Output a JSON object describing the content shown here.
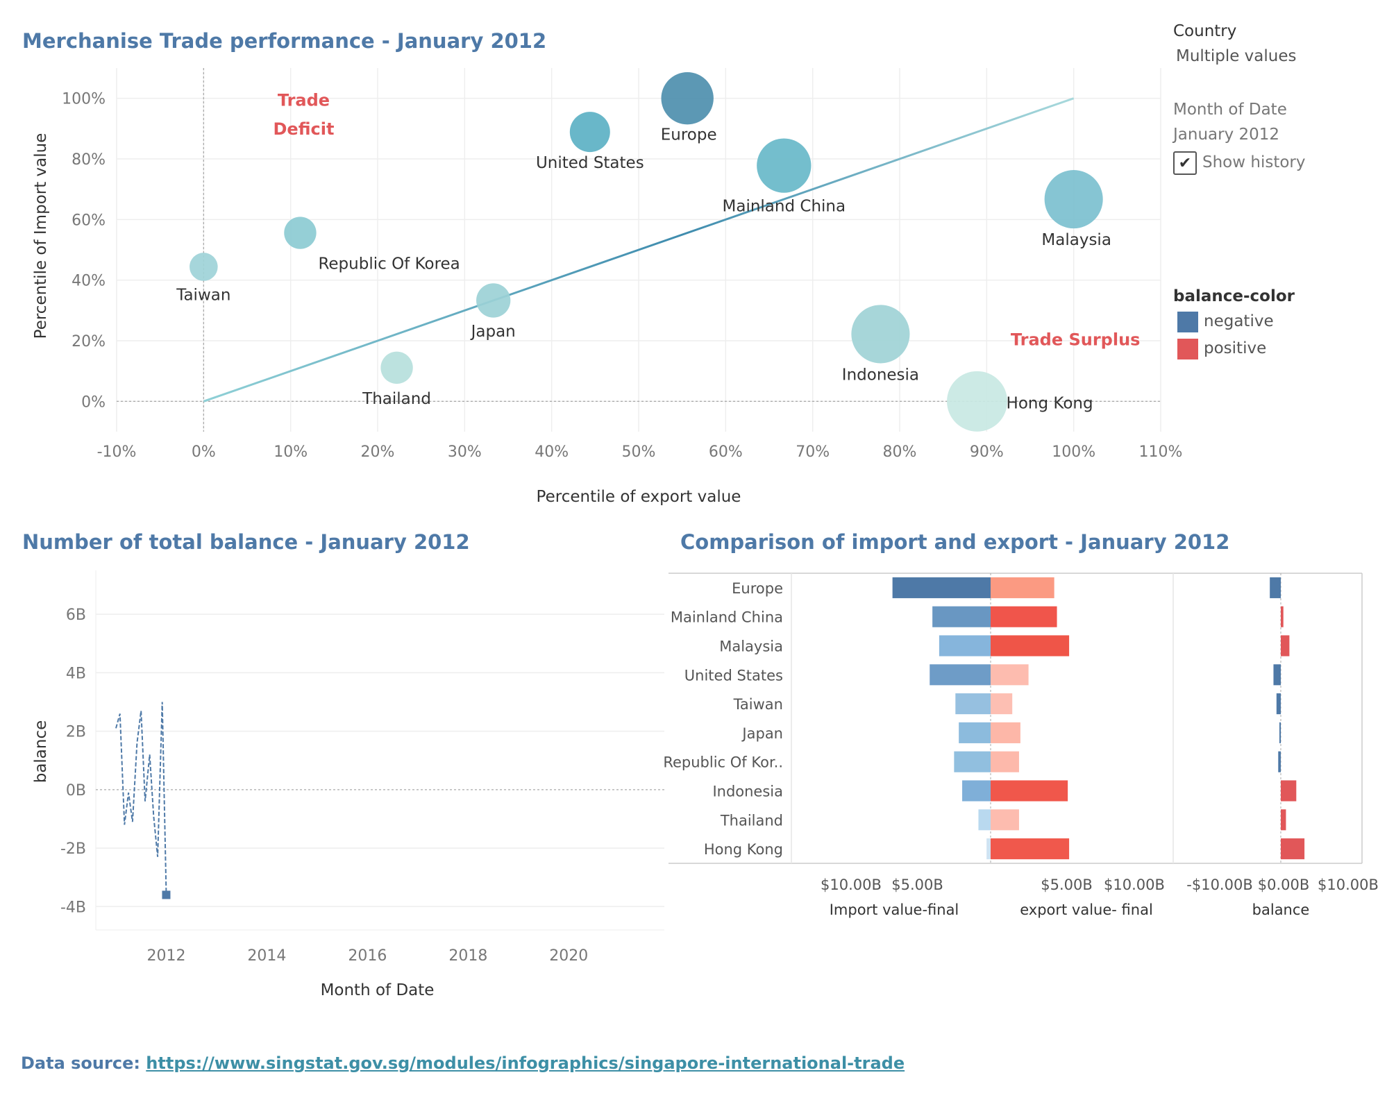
{
  "scatter": {
    "title": "Merchanise Trade performance - January 2012",
    "xlabel": "Percentile of export value",
    "ylabel": "Percentile of Import value",
    "deficit_label_1": "Trade",
    "deficit_label_2": "Deficit",
    "surplus_label": "Trade Surplus"
  },
  "line": {
    "title": "Number of total balance - January 2012",
    "xlabel": "Month of Date",
    "ylabel": "balance"
  },
  "bars": {
    "title": "Comparison of import and export - January 2012",
    "import_label": "Import value-final",
    "export_label": "export value- final",
    "balance_label": "balance"
  },
  "filters": {
    "country_header": "Country",
    "country_value": "Multiple values",
    "month_header": "Month of Date",
    "month_value": "January 2012",
    "show_history_label": "Show history",
    "show_history_checked": true
  },
  "legend": {
    "header": "balance-color",
    "items": [
      {
        "label": "negative",
        "color": "#4e79a7"
      },
      {
        "label": "positive",
        "color": "#e15759"
      }
    ]
  },
  "source": {
    "prefix": "Data source: ",
    "link": "https://www.singstat.gov.sg/modules/infographics/singapore-international-trade"
  },
  "chart_data": [
    {
      "type": "scatter",
      "title": "Merchanise Trade performance - January 2012",
      "xlabel": "Percentile of export value",
      "ylabel": "Percentile of Import value",
      "xlim": [
        -10,
        110
      ],
      "ylim": [
        -10,
        110
      ],
      "x_ticks": [
        "-10%",
        "0%",
        "10%",
        "20%",
        "30%",
        "40%",
        "50%",
        "60%",
        "70%",
        "80%",
        "90%",
        "100%",
        "110%"
      ],
      "y_ticks": [
        "0%",
        "20%",
        "40%",
        "60%",
        "80%",
        "100%"
      ],
      "grid": true,
      "reference_line": {
        "from": [
          0,
          0
        ],
        "to": [
          100,
          100
        ]
      },
      "points": [
        {
          "label": "Taiwan",
          "x": 0,
          "y": 44.4,
          "size": 1.4,
          "color": "#9ed2d8"
        },
        {
          "label": "Republic Of Korea",
          "x": 11.1,
          "y": 55.6,
          "size": 1.6,
          "color": "#8ccbd3"
        },
        {
          "label": "Thailand",
          "x": 22.2,
          "y": 11.1,
          "size": 1.6,
          "color": "#b6e0dc"
        },
        {
          "label": "Japan",
          "x": 33.3,
          "y": 33.3,
          "size": 1.7,
          "color": "#9cd1d6"
        },
        {
          "label": "United States",
          "x": 44.4,
          "y": 88.9,
          "size": 2.0,
          "color": "#5cb1c4"
        },
        {
          "label": "Europe",
          "x": 55.6,
          "y": 100,
          "size": 2.6,
          "color": "#4e8fae"
        },
        {
          "label": "Mainland China",
          "x": 66.7,
          "y": 77.8,
          "size": 2.7,
          "color": "#68b8c9"
        },
        {
          "label": "Malaysia",
          "x": 100,
          "y": 66.7,
          "size": 2.9,
          "color": "#7cc0cf"
        },
        {
          "label": "Indonesia",
          "x": 77.8,
          "y": 22.2,
          "size": 2.9,
          "color": "#a0d3d6"
        },
        {
          "label": "Hong Kong",
          "x": 88.9,
          "y": 0,
          "size": 3.0,
          "color": "#c8e8e3"
        }
      ]
    },
    {
      "type": "line",
      "title": "Number of total balance - January 2012",
      "xlabel": "Month of Date",
      "ylabel": "balance",
      "xlim": [
        2010.6,
        2021.9
      ],
      "ylim": [
        -4.8,
        7.5
      ],
      "x_ticks": [
        "2012",
        "2014",
        "2016",
        "2018",
        "2020"
      ],
      "y_ticks": [
        "-4B",
        "-2B",
        "0B",
        "2B",
        "4B",
        "6B"
      ],
      "grid": true,
      "series": [
        {
          "x": [
            2011.0,
            2011.08,
            2011.17,
            2011.25,
            2011.33,
            2011.42,
            2011.5,
            2011.58,
            2011.67,
            2011.75,
            2011.83,
            2011.92,
            2012.0
          ],
          "values": [
            2.1,
            2.6,
            -1.2,
            -0.1,
            -1.1,
            1.6,
            2.7,
            -0.4,
            1.2,
            -0.9,
            -2.3,
            3.0,
            -3.6
          ],
          "highlight_last": true
        }
      ]
    },
    {
      "type": "bar",
      "title": "Comparison of import and export - January 2012",
      "categories": [
        "Europe",
        "Mainland China",
        "Malaysia",
        "United States",
        "Taiwan",
        "Japan",
        "Republic Of Kor..",
        "Indonesia",
        "Thailand",
        "Hong Kong"
      ],
      "series": [
        {
          "name": "Import value-final",
          "values": [
            7.25,
            4.3,
            3.8,
            4.5,
            2.6,
            2.35,
            2.7,
            2.1,
            0.9,
            0.3
          ]
        },
        {
          "name": "export value- final",
          "values": [
            4.7,
            4.9,
            5.8,
            2.8,
            1.6,
            2.2,
            2.1,
            5.7,
            2.1,
            5.8
          ]
        },
        {
          "name": "balance",
          "values": [
            -2.55,
            0.6,
            2.0,
            -1.7,
            -1.0,
            -0.15,
            -0.6,
            3.6,
            1.2,
            5.5
          ]
        }
      ],
      "import_ticks": [
        "$10.00B",
        "$5.00B"
      ],
      "export_ticks": [
        "$5.00B",
        "$10.00B"
      ],
      "balance_ticks": [
        "-$10.00B",
        "$0.00B",
        "$10.00B"
      ]
    }
  ]
}
